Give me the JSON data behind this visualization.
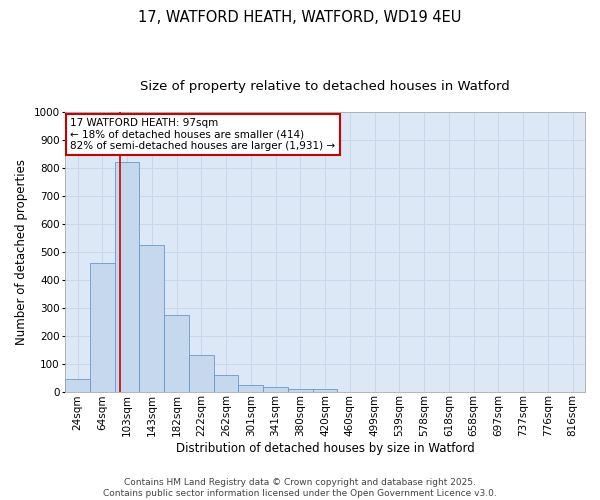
{
  "title1": "17, WATFORD HEATH, WATFORD, WD19 4EU",
  "title2": "Size of property relative to detached houses in Watford",
  "xlabel": "Distribution of detached houses by size in Watford",
  "ylabel": "Number of detached properties",
  "bar_labels": [
    "24sqm",
    "64sqm",
    "103sqm",
    "143sqm",
    "182sqm",
    "222sqm",
    "262sqm",
    "301sqm",
    "341sqm",
    "380sqm",
    "420sqm",
    "460sqm",
    "499sqm",
    "539sqm",
    "578sqm",
    "618sqm",
    "658sqm",
    "697sqm",
    "737sqm",
    "776sqm",
    "816sqm"
  ],
  "bar_heights": [
    45,
    460,
    820,
    525,
    275,
    130,
    60,
    25,
    15,
    10,
    10,
    0,
    0,
    0,
    0,
    0,
    0,
    0,
    0,
    0,
    0
  ],
  "bar_color": "#c5d8ee",
  "bar_edge_color": "#6699cc",
  "vline_x_bar_idx": 1.72,
  "vline_color": "#cc0000",
  "ylim": [
    0,
    1000
  ],
  "yticks": [
    0,
    100,
    200,
    300,
    400,
    500,
    600,
    700,
    800,
    900,
    1000
  ],
  "annotation_line1": "17 WATFORD HEATH: 97sqm",
  "annotation_line2": "← 18% of detached houses are smaller (414)",
  "annotation_line3": "82% of semi-detached houses are larger (1,931) →",
  "annotation_box_color": "#cc0000",
  "footer1": "Contains HM Land Registry data © Crown copyright and database right 2025.",
  "footer2": "Contains public sector information licensed under the Open Government Licence v3.0.",
  "plot_bg_color": "#dce8f5",
  "fig_bg_color": "#ffffff",
  "grid_color": "#c8d8e8",
  "title1_fontsize": 10.5,
  "title2_fontsize": 9.5,
  "axis_label_fontsize": 8.5,
  "tick_fontsize": 7.5,
  "annotation_fontsize": 7.5,
  "footer_fontsize": 6.5
}
